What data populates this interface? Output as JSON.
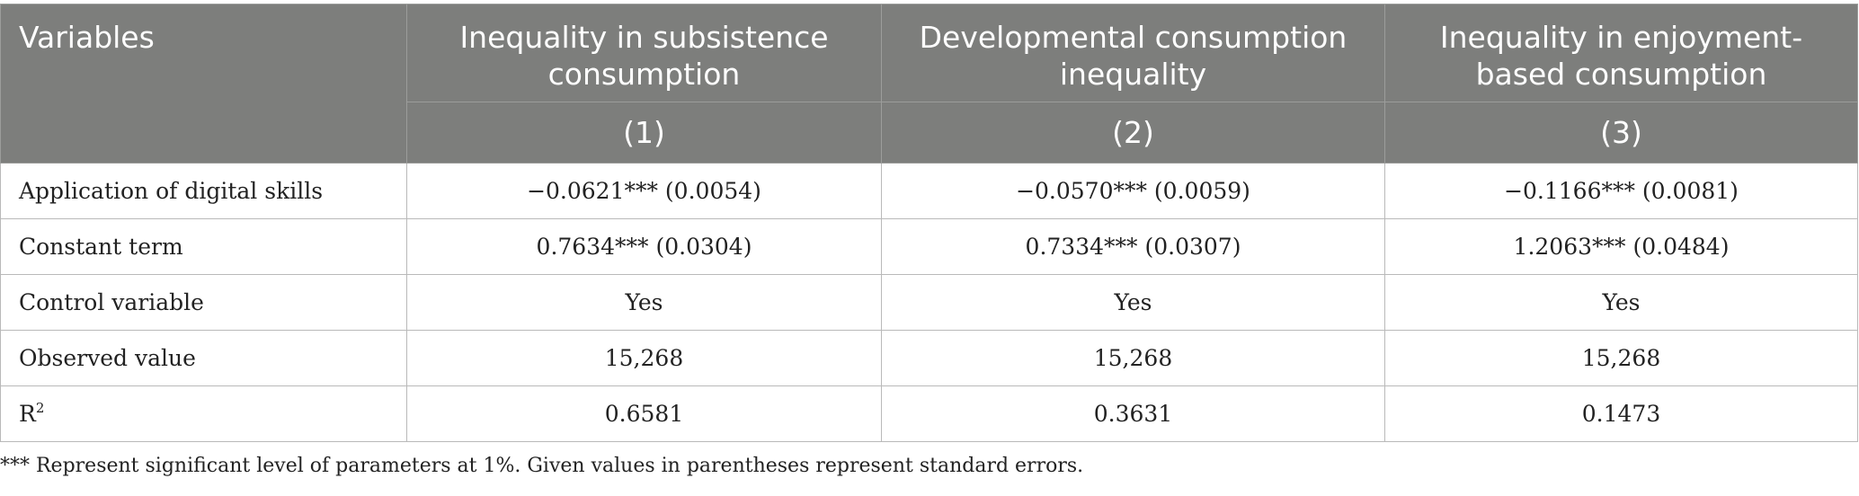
{
  "table": {
    "header": {
      "variables": "Variables",
      "columns": [
        "Inequality in subsistence consumption",
        "Developmental consumption inequality",
        "Inequality in enjoyment-based consumption"
      ],
      "numbers": [
        "(1)",
        "(2)",
        "(3)"
      ]
    },
    "rows": [
      {
        "label": "Application of digital skills",
        "values": [
          "−0.0621*** (0.0054)",
          "−0.0570*** (0.0059)",
          "−0.1166*** (0.0081)"
        ]
      },
      {
        "label": "Constant term",
        "values": [
          "0.7634*** (0.0304)",
          "0.7334*** (0.0307)",
          "1.2063*** (0.0484)"
        ]
      },
      {
        "label": "Control variable",
        "values": [
          "Yes",
          "Yes",
          "Yes"
        ]
      },
      {
        "label": "Observed value",
        "values": [
          "15,268",
          "15,268",
          "15,268"
        ]
      },
      {
        "label_base": "R",
        "label_sup": "2",
        "values": [
          "0.6581",
          "0.3631",
          "0.1473"
        ]
      }
    ]
  },
  "footnote": "*** Represent significant level of parameters at 1%. Given values in parentheses represent standard errors."
}
